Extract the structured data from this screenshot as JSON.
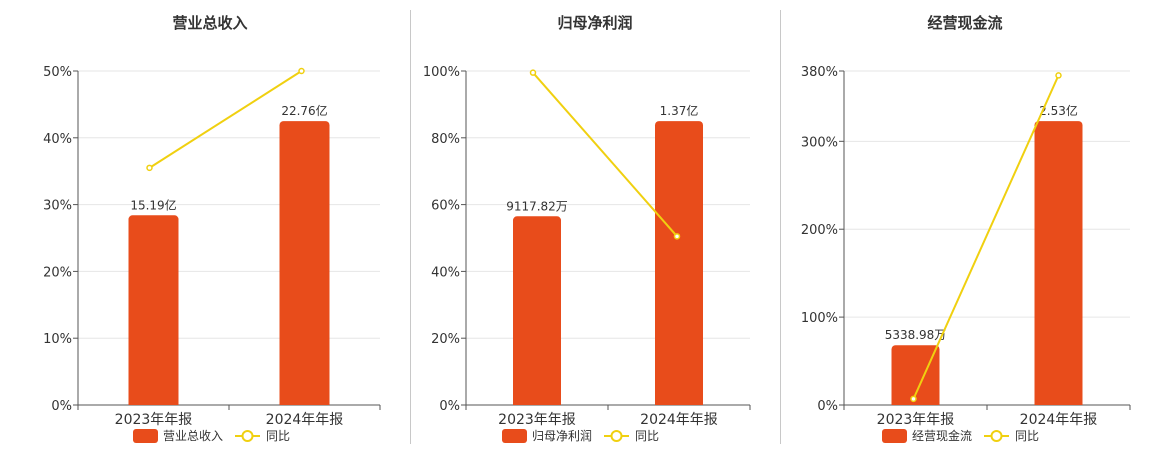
{
  "colors": {
    "bar": "#e84c1b",
    "line": "#f0d010",
    "grid": "#e6e6e6",
    "axis": "#555555"
  },
  "chart_data": [
    {
      "type": "bar",
      "title": "营业总收入",
      "categories": [
        "2023年年报",
        "2024年年报"
      ],
      "series": [
        {
          "name": "营业总收入",
          "type": "bar",
          "values": [
            28.4,
            42.5
          ],
          "labels": [
            "15.19亿",
            "22.76亿"
          ]
        },
        {
          "name": "同比",
          "type": "line",
          "values": [
            35.5,
            50.0
          ]
        }
      ],
      "yticks": [
        "0%",
        "10%",
        "20%",
        "30%",
        "40%",
        "50%"
      ],
      "ylim": [
        0,
        50
      ],
      "legend": "bottom",
      "grid": true
    },
    {
      "type": "bar",
      "title": "归母净利润",
      "categories": [
        "2023年年报",
        "2024年年报"
      ],
      "series": [
        {
          "name": "归母净利润",
          "type": "bar",
          "values": [
            56.5,
            85.0
          ],
          "labels": [
            "9117.82万",
            "1.37亿"
          ]
        },
        {
          "name": "同比",
          "type": "line",
          "values": [
            99.5,
            50.5
          ]
        }
      ],
      "yticks": [
        "0%",
        "20%",
        "40%",
        "60%",
        "80%",
        "100%"
      ],
      "ylim": [
        0,
        100
      ],
      "legend": "bottom",
      "grid": true
    },
    {
      "type": "bar",
      "title": "经营现金流",
      "categories": [
        "2023年年报",
        "2024年年报"
      ],
      "series": [
        {
          "name": "经营现金流",
          "type": "bar",
          "values": [
            68,
            323
          ],
          "labels": [
            "5338.98万",
            "2.53亿"
          ]
        },
        {
          "name": "同比",
          "type": "line",
          "values": [
            7,
            375
          ]
        }
      ],
      "yticks": [
        "0%",
        "100%",
        "200%",
        "300%",
        "380%"
      ],
      "ytick_values": [
        0,
        100,
        200,
        300,
        380
      ],
      "ylim": [
        0,
        380
      ],
      "legend": "bottom",
      "grid": true
    }
  ]
}
